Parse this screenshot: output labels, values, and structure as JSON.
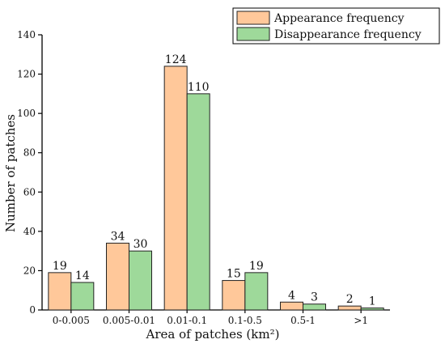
{
  "chart_data": {
    "type": "bar",
    "title": "",
    "xlabel": "Area of patches (km²)",
    "ylabel": "Number of patches",
    "categories": [
      "0-0.005",
      "0.005-0.01",
      "0.01-0.1",
      "0.1-0.5",
      "0.5-1",
      ">1"
    ],
    "series": [
      {
        "name": "Appearance frequency",
        "values": [
          19,
          34,
          124,
          15,
          4,
          2
        ],
        "color": "#FFC89A"
      },
      {
        "name": "Disappearance frequency",
        "values": [
          14,
          30,
          110,
          19,
          3,
          1
        ],
        "color": "#9ED99A"
      }
    ],
    "ylim": [
      0,
      140
    ],
    "yticks": [
      0,
      20,
      40,
      60,
      80,
      100,
      120,
      140
    ],
    "grid": false,
    "legend_position": "top-right"
  }
}
